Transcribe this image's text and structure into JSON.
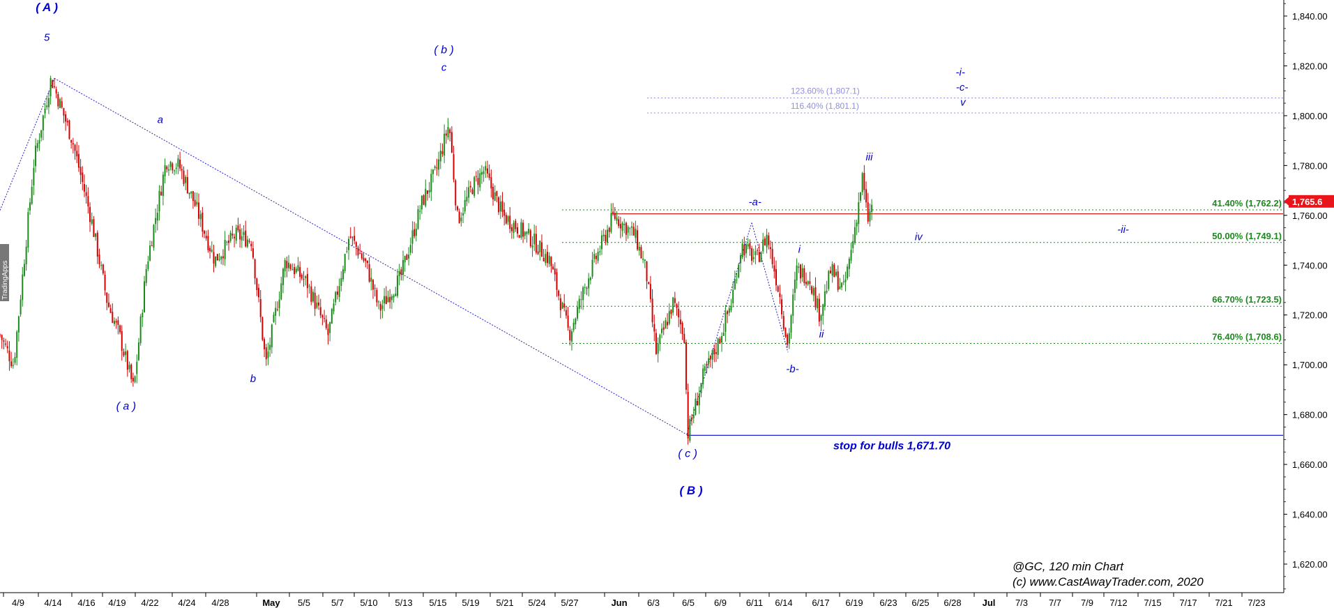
{
  "chart_data": {
    "type": "candlestick",
    "y_axis": {
      "range": [
        1613,
        1843
      ],
      "ticks": [
        "1,840.00",
        "1,820.00",
        "1,800.00",
        "1,780.00",
        "1,760.00",
        "1,740.00",
        "1,720.00",
        "1,700.00",
        "1,680.00",
        "1,660.00",
        "1,640.00",
        "1,620.00"
      ],
      "tick_values": [
        1840,
        1820,
        1800,
        1780,
        1760,
        1740,
        1720,
        1700,
        1680,
        1660,
        1640,
        1620
      ]
    },
    "x_axis": {
      "labels": [
        "4/9",
        "4/14",
        "4/16",
        "4/19",
        "4/22",
        "4/24",
        "4/28",
        "May",
        "5/5",
        "5/7",
        "5/10",
        "5/13",
        "5/15",
        "5/19",
        "5/21",
        "5/24",
        "5/27",
        "Jun",
        "6/3",
        "6/5",
        "6/9",
        "6/11",
        "6/14",
        "6/17",
        "6/19",
        "6/23",
        "6/25",
        "6/28",
        "Jul",
        "7/3",
        "7/7",
        "7/9",
        "7/12",
        "7/15",
        "7/17",
        "7/21",
        "7/23"
      ],
      "bold_labels": [
        "May",
        "Jun",
        "Jul"
      ]
    },
    "price_path": [
      [
        0,
        1712
      ],
      [
        16,
        1700
      ],
      [
        40,
        1782
      ],
      [
        60,
        1815
      ],
      [
        85,
        1790
      ],
      [
        108,
        1757
      ],
      [
        126,
        1725
      ],
      [
        140,
        1712
      ],
      [
        157,
        1690
      ],
      [
        172,
        1740
      ],
      [
        195,
        1782
      ],
      [
        210,
        1780
      ],
      [
        228,
        1765
      ],
      [
        252,
        1742
      ],
      [
        276,
        1752
      ],
      [
        295,
        1750
      ],
      [
        312,
        1700
      ],
      [
        335,
        1742
      ],
      [
        360,
        1733
      ],
      [
        385,
        1712
      ],
      [
        410,
        1752
      ],
      [
        430,
        1740
      ],
      [
        445,
        1722
      ],
      [
        470,
        1735
      ],
      [
        495,
        1765
      ],
      [
        512,
        1778
      ],
      [
        527,
        1797
      ],
      [
        537,
        1758
      ],
      [
        555,
        1772
      ],
      [
        568,
        1778
      ],
      [
        590,
        1760
      ],
      [
        625,
        1750
      ],
      [
        645,
        1742
      ],
      [
        668,
        1712
      ],
      [
        690,
        1735
      ],
      [
        720,
        1760
      ],
      [
        745,
        1752
      ],
      [
        758,
        1738
      ],
      [
        770,
        1705
      ],
      [
        790,
        1725
      ],
      [
        803,
        1712
      ],
      [
        807,
        1672
      ],
      [
        825,
        1695
      ],
      [
        842,
        1708
      ],
      [
        858,
        1725
      ],
      [
        870,
        1748
      ],
      [
        888,
        1742
      ],
      [
        900,
        1752
      ],
      [
        915,
        1728
      ],
      [
        924,
        1708
      ],
      [
        935,
        1738
      ],
      [
        950,
        1735
      ],
      [
        962,
        1720
      ],
      [
        975,
        1738
      ],
      [
        990,
        1730
      ],
      [
        1000,
        1748
      ],
      [
        1012,
        1775
      ],
      [
        1018,
        1758
      ],
      [
        1025,
        1765
      ]
    ],
    "horizontal_levels": [
      {
        "label": "41.40% (1,762.2)",
        "value": 1762.2,
        "kind": "fib"
      },
      {
        "label": "50.00% (1,749.1)",
        "value": 1749.1,
        "kind": "fib"
      },
      {
        "label": "66.70% (1,723.5)",
        "value": 1723.5,
        "kind": "fib"
      },
      {
        "label": "76.40% (1,708.6)",
        "value": 1708.6,
        "kind": "fib"
      },
      {
        "label": "123.60% (1,807.1)",
        "value": 1807.1,
        "kind": "extension"
      },
      {
        "label": "116.40% (1,801.1)",
        "value": 1801.1,
        "kind": "extension"
      }
    ],
    "red_line_value": 1760.6,
    "stop_line": {
      "label": "stop for bulls 1,671.70",
      "value": 1671.7
    },
    "last_price": "1,765.6",
    "wave_labels": [
      {
        "text": "( A )",
        "x": 55,
        "y": 1842,
        "size": 17,
        "bold": true,
        "italic": false
      },
      {
        "text": "5",
        "x": 55,
        "y": 1830,
        "size": 15,
        "bold": false,
        "italic": true
      },
      {
        "text": "a",
        "x": 188,
        "y": 1797,
        "size": 15,
        "bold": false,
        "italic": true
      },
      {
        "text": "( a )",
        "x": 148,
        "y": 1682,
        "size": 16,
        "bold": false,
        "italic": true
      },
      {
        "text": "( b )",
        "x": 521,
        "y": 1825,
        "size": 16,
        "bold": false,
        "italic": true
      },
      {
        "text": "c",
        "x": 521,
        "y": 1818,
        "size": 15,
        "bold": false,
        "italic": true
      },
      {
        "text": "b",
        "x": 297,
        "y": 1693,
        "size": 15,
        "bold": false,
        "italic": true
      },
      {
        "text": "( c )",
        "x": 807,
        "y": 1663,
        "size": 16,
        "bold": false,
        "italic": true
      },
      {
        "text": "( B )",
        "x": 811,
        "y": 1648,
        "size": 17,
        "bold": true,
        "italic": false
      },
      {
        "text": "-a-",
        "x": 886,
        "y": 1764,
        "size": 15,
        "bold": false,
        "italic": true
      },
      {
        "text": "-b-",
        "x": 930,
        "y": 1697,
        "size": 15,
        "bold": false,
        "italic": true
      },
      {
        "text": "i",
        "x": 938,
        "y": 1745,
        "size": 15,
        "bold": false,
        "italic": true
      },
      {
        "text": "ii",
        "x": 964,
        "y": 1711,
        "size": 15,
        "bold": false,
        "italic": true
      },
      {
        "text": "iii",
        "x": 1020,
        "y": 1782,
        "size": 15,
        "bold": false,
        "italic": true
      },
      {
        "text": "iv",
        "x": 1078,
        "y": 1750,
        "size": 15,
        "bold": false,
        "italic": true
      },
      {
        "text": "-i-",
        "x": 1127,
        "y": 1816,
        "size": 15,
        "bold": false,
        "italic": true
      },
      {
        "text": "-c-",
        "x": 1129,
        "y": 1810,
        "size": 15,
        "bold": false,
        "italic": true
      },
      {
        "text": "v",
        "x": 1130,
        "y": 1804,
        "size": 15,
        "bold": false,
        "italic": true
      },
      {
        "text": "-ii-",
        "x": 1318,
        "y": 1753,
        "size": 15,
        "bold": false,
        "italic": true
      }
    ],
    "notes": [
      "@GC, 120 min Chart",
      "(c) www.CastAwayTrader.com, 2020"
    ],
    "vendor_tag": "TradingApps",
    "colors": {
      "up_candle": "#1a8a1a",
      "down_candle": "#d40000",
      "fib_line": "#1a8a1a",
      "extension_line": "#8f8fdc",
      "wave_label": "#0000d0",
      "stop_line": "#0000d0",
      "red_line": "#d40000",
      "price_tag": "#e8151b"
    }
  }
}
